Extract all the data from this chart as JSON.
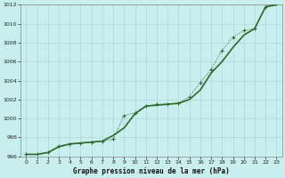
{
  "x": [
    0,
    1,
    2,
    3,
    4,
    5,
    6,
    7,
    8,
    9,
    10,
    11,
    12,
    13,
    14,
    15,
    16,
    17,
    18,
    19,
    20,
    21,
    22,
    23
  ],
  "line_smooth": [
    996.2,
    996.2,
    996.4,
    997.0,
    997.3,
    997.4,
    997.5,
    997.6,
    998.2,
    999.0,
    1000.5,
    1001.3,
    1001.4,
    1001.5,
    1001.6,
    1002.0,
    1003.0,
    1004.8,
    1006.0,
    1007.5,
    1008.8,
    1009.5,
    1011.8,
    1012.0
  ],
  "line_marker": [
    996.2,
    996.2,
    996.4,
    997.1,
    997.3,
    997.4,
    997.5,
    997.6,
    997.8,
    1000.3,
    1000.6,
    1001.3,
    1001.5,
    1001.5,
    1001.6,
    1002.3,
    1003.8,
    1005.2,
    1007.2,
    1008.6,
    1009.3,
    1009.5,
    1011.8,
    1012.2
  ],
  "ylim": [
    996,
    1012
  ],
  "yticks": [
    996,
    998,
    1000,
    1002,
    1004,
    1006,
    1008,
    1010,
    1012
  ],
  "xlim": [
    -0.5,
    23.5
  ],
  "xticks": [
    0,
    1,
    2,
    3,
    4,
    5,
    6,
    7,
    8,
    9,
    10,
    11,
    12,
    13,
    14,
    15,
    16,
    17,
    18,
    19,
    20,
    21,
    22,
    23
  ],
  "xlabel": "Graphe pression niveau de la mer (hPa)",
  "line_color": "#2d6a2d",
  "bg_color": "#c8eeee",
  "grid_color": "#b0d8d8",
  "figsize": [
    3.2,
    2.0
  ],
  "dpi": 100
}
